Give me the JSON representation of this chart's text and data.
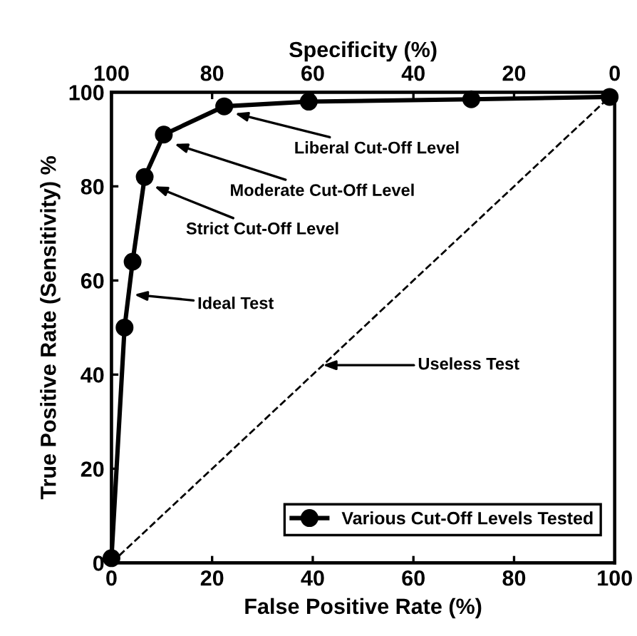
{
  "chart_data": {
    "type": "line",
    "xlabel": "False Positive Rate (%)",
    "ylabel": "True Positive Rate (Sensitivity) %",
    "x2label": "Specificity (%)",
    "xlim": [
      0,
      100
    ],
    "xticks": [
      0,
      20,
      40,
      60,
      80,
      100
    ],
    "ylim": [
      0,
      100
    ],
    "yticks": [
      0,
      20,
      40,
      60,
      80,
      100
    ],
    "x2lim": [
      100,
      0
    ],
    "x2ticks": [
      100,
      80,
      60,
      40,
      20,
      0
    ],
    "series": [
      {
        "name": "Various Cut-Off Levels Tested",
        "color": "#000000",
        "marker": "circle",
        "line_style": "solid",
        "x": [
          0,
          2.6,
          4.2,
          6.6,
          10.4,
          22.4,
          39.2,
          71.5,
          99
        ],
        "values": [
          1,
          50,
          64,
          82,
          91,
          97,
          98,
          98.5,
          99
        ]
      },
      {
        "color": "#000000",
        "marker": "none",
        "line_style": "dashed",
        "x": [
          0,
          100
        ],
        "values": [
          0,
          100
        ]
      }
    ],
    "annotations": [
      {
        "text": "Liberal Cut-Off Level",
        "x": 24.5,
        "y": 95.5
      },
      {
        "text": "Moderate Cut-Off Level",
        "x": 12.5,
        "y": 89
      },
      {
        "text": "Strict Cut-Off Level",
        "x": 8.5,
        "y": 80
      },
      "Ideal Test",
      {
        "text": "Useless Test",
        "x": 42,
        "y": 42
      }
    ],
    "legend": "bottom right",
    "grid": false
  }
}
